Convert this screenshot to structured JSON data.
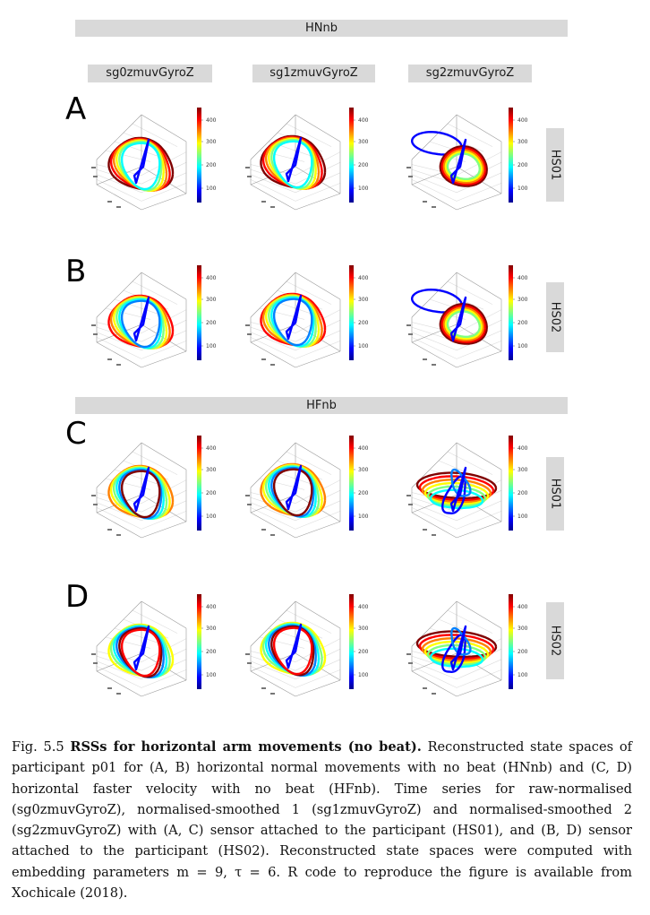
{
  "groups": [
    {
      "name": "HNnb"
    },
    {
      "name": "HFnb"
    }
  ],
  "columns": [
    "sg0zmuvGyroZ",
    "sg1zmuvGyroZ",
    "sg2zmuvGyroZ"
  ],
  "rows": [
    {
      "letter": "A",
      "sensor": "HS01",
      "ticks": [
        "400",
        "300",
        "200",
        "100"
      ]
    },
    {
      "letter": "B",
      "sensor": "HS02",
      "ticks": [
        "400",
        "300",
        "200",
        "100"
      ]
    },
    {
      "letter": "C",
      "sensor": "HS01",
      "ticks": [
        "400",
        "300",
        "200",
        "100"
      ]
    },
    {
      "letter": "D",
      "sensor": "HS02",
      "ticks": [
        "400",
        "300",
        "200",
        "100"
      ]
    }
  ],
  "colormap": [
    "#00008f",
    "#0000ff",
    "#0080ff",
    "#00ffff",
    "#80ff80",
    "#ffff00",
    "#ff8000",
    "#ff0000",
    "#800000"
  ],
  "caption": {
    "fig_label": "Fig. 5.5",
    "bold_title": "RSSs for horizontal arm movements (no beat).",
    "text": "Reconstructed state spaces of participant p01 for (A, B) horizontal normal movements with no beat (HNnb) and (C, D) horizontal faster velocity with no beat (HFnb). Time series for raw-normalised (sg0zmuvGyroZ), normalised-smoothed 1 (sg1zmuvGyroZ) and normalised-smoothed 2 (sg2zmuvGyroZ) with (A, C) sensor attached to the participant (HS01), and (B, D) sensor attached to the participant (HS02). Reconstructed state spaces were computed with embedding parameters m = 9, τ = 6. R code to reproduce the figure is available from Xochicale (2018)."
  }
}
